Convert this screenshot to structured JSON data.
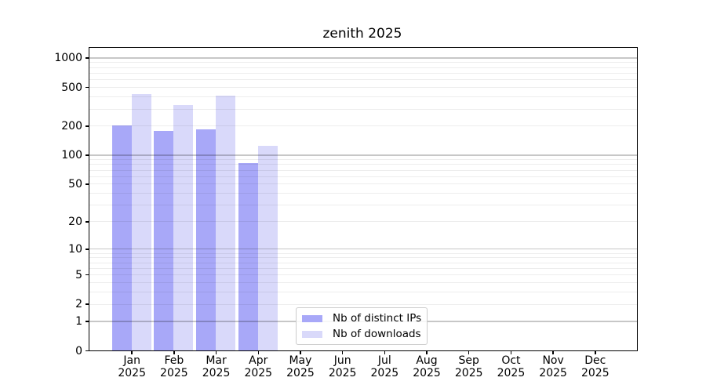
{
  "title": "zenith 2025",
  "chart_data": {
    "type": "bar",
    "title": "zenith 2025",
    "xlabel": "",
    "ylabel": "",
    "yscale": "log(1+x)",
    "ylim": [
      0,
      1000
    ],
    "y_ticks": [
      0,
      1,
      2,
      5,
      10,
      20,
      50,
      100,
      200,
      500,
      1000
    ],
    "grid": true,
    "legend_position": "inside-bottom-center",
    "categories": [
      "Jan 2025",
      "Feb 2025",
      "Mar 2025",
      "Apr 2025",
      "May 2025",
      "Jun 2025",
      "Jul 2025",
      "Aug 2025",
      "Sep 2025",
      "Oct 2025",
      "Nov 2025",
      "Dec 2025"
    ],
    "series": [
      {
        "name": "Nb of distinct IPs",
        "color": "#a8a8f8",
        "values": [
          200,
          178,
          185,
          82,
          null,
          null,
          null,
          null,
          null,
          null,
          null,
          null
        ]
      },
      {
        "name": "Nb of downloads",
        "color": "#d9d9fa",
        "values": [
          425,
          325,
          405,
          125,
          null,
          null,
          null,
          null,
          null,
          null,
          null,
          null
        ]
      }
    ]
  },
  "legend": {
    "items": [
      "Nb of distinct IPs",
      "Nb of downloads"
    ]
  }
}
